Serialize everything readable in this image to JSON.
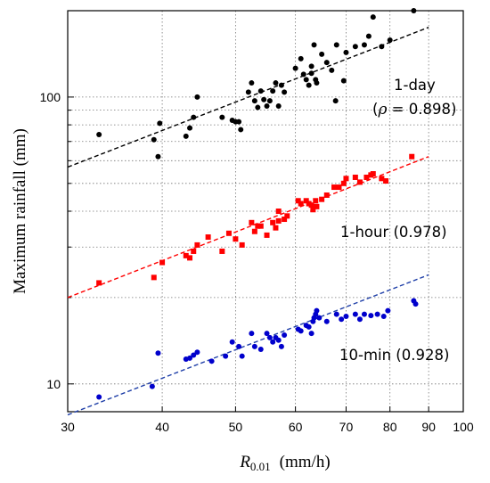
{
  "chart_data": {
    "type": "scatter",
    "x_scale": "log",
    "y_scale": "log",
    "xlim": [
      30,
      100
    ],
    "ylim": [
      8,
      200
    ],
    "grid": true,
    "grid_style": "dotted",
    "xlabel": {
      "main": "R",
      "sub": "0.01",
      "unit": "(mm/h)"
    },
    "ylabel": "Maximum rainfall  (mm)",
    "x_ticks": [
      30,
      40,
      50,
      60,
      70,
      80,
      90,
      100
    ],
    "x_tick_labels": [
      "30",
      "40",
      "50",
      "60",
      "70",
      "80",
      "90",
      "100"
    ],
    "y_major_ticks": [
      10,
      100
    ],
    "y_tick_labels": [
      "10",
      "100"
    ],
    "y_minor_ticks": [
      20,
      30,
      40,
      50,
      60,
      70,
      80,
      90,
      200
    ],
    "series": [
      {
        "name": "1-day",
        "marker": "circle",
        "color": "#000000",
        "trend_color": "#000000",
        "trend": [
          [
            30,
            57
          ],
          [
            90,
            175
          ]
        ],
        "annotation": {
          "text": "1-day",
          "rho_label": "(",
          "rho_symbol": "ρ",
          "rho_value": " = 0.898)"
        },
        "points": [
          [
            33.0,
            74
          ],
          [
            39.0,
            71
          ],
          [
            39.5,
            62
          ],
          [
            39.7,
            81
          ],
          [
            43.0,
            73
          ],
          [
            43.5,
            78
          ],
          [
            44.0,
            85
          ],
          [
            44.5,
            100
          ],
          [
            48.0,
            85
          ],
          [
            49.5,
            83
          ],
          [
            50.0,
            82
          ],
          [
            50.5,
            82
          ],
          [
            50.8,
            77
          ],
          [
            52.0,
            104
          ],
          [
            52.5,
            112
          ],
          [
            53.0,
            97
          ],
          [
            53.5,
            92
          ],
          [
            54.0,
            105
          ],
          [
            54.5,
            98
          ],
          [
            55.0,
            93
          ],
          [
            55.5,
            97
          ],
          [
            56.0,
            105
          ],
          [
            56.5,
            112
          ],
          [
            57.0,
            93
          ],
          [
            57.5,
            110
          ],
          [
            58.0,
            104
          ],
          [
            60.0,
            126
          ],
          [
            61.0,
            136
          ],
          [
            61.5,
            120
          ],
          [
            62.0,
            115
          ],
          [
            62.5,
            110
          ],
          [
            63.0,
            128
          ],
          [
            63.5,
            152
          ],
          [
            63.0,
            121
          ],
          [
            63.8,
            115
          ],
          [
            64.0,
            112
          ],
          [
            65.0,
            141
          ],
          [
            66.0,
            132
          ],
          [
            67.0,
            124
          ],
          [
            67.8,
            97
          ],
          [
            68.0,
            152
          ],
          [
            70.0,
            143
          ],
          [
            69.5,
            114
          ],
          [
            72.0,
            150
          ],
          [
            74.0,
            152
          ],
          [
            75.0,
            163
          ],
          [
            76.0,
            190
          ],
          [
            78.0,
            150
          ],
          [
            80.0,
            158
          ],
          [
            86.0,
            200
          ]
        ]
      },
      {
        "name": "1-hour",
        "marker": "square",
        "color": "#ff0000",
        "trend_color": "#ff0000",
        "trend": [
          [
            30,
            20
          ],
          [
            90,
            62
          ]
        ],
        "annotation": {
          "text": "1-hour (0.978)"
        },
        "points": [
          [
            33.0,
            22.5
          ],
          [
            39.0,
            23.5
          ],
          [
            40.0,
            26.5
          ],
          [
            43.0,
            28.0
          ],
          [
            43.5,
            27.5
          ],
          [
            44.0,
            29.0
          ],
          [
            44.5,
            30.5
          ],
          [
            46.0,
            32.5
          ],
          [
            48.0,
            29.0
          ],
          [
            49.0,
            33.5
          ],
          [
            50.0,
            32.0
          ],
          [
            51.0,
            30.5
          ],
          [
            52.5,
            36.5
          ],
          [
            53.0,
            34.0
          ],
          [
            53.5,
            35.5
          ],
          [
            54.0,
            35.5
          ],
          [
            55.0,
            33.0
          ],
          [
            56.0,
            36.5
          ],
          [
            56.5,
            35.0
          ],
          [
            57.0,
            37.0
          ],
          [
            57.0,
            40.0
          ],
          [
            58.0,
            37.5
          ],
          [
            58.5,
            38.5
          ],
          [
            60.5,
            43.5
          ],
          [
            61.0,
            42.5
          ],
          [
            62.0,
            43.5
          ],
          [
            62.5,
            42.5
          ],
          [
            63.0,
            42.0
          ],
          [
            63.3,
            40.5
          ],
          [
            63.8,
            43.5
          ],
          [
            64.0,
            41.5
          ],
          [
            65.0,
            44.0
          ],
          [
            66.0,
            45.5
          ],
          [
            67.5,
            48.5
          ],
          [
            68.5,
            48.5
          ],
          [
            69.5,
            50.0
          ],
          [
            70.0,
            52.0
          ],
          [
            72.0,
            52.5
          ],
          [
            73.0,
            50.5
          ],
          [
            74.5,
            52.5
          ],
          [
            75.5,
            53.5
          ],
          [
            76.0,
            54.0
          ],
          [
            78.0,
            52.0
          ],
          [
            79.0,
            51.0
          ],
          [
            85.5,
            62.0
          ]
        ]
      },
      {
        "name": "10-min",
        "marker": "circle",
        "color": "#0000cc",
        "trend_color": "#1f3fa8",
        "trend": [
          [
            30,
            7.8
          ],
          [
            90,
            24
          ]
        ],
        "annotation": {
          "text": "10-min (0.928)"
        },
        "points": [
          [
            33.0,
            9.0
          ],
          [
            38.8,
            9.8
          ],
          [
            39.5,
            12.8
          ],
          [
            43.0,
            12.2
          ],
          [
            43.5,
            12.3
          ],
          [
            44.0,
            12.6
          ],
          [
            44.5,
            12.9
          ],
          [
            46.5,
            12.0
          ],
          [
            48.5,
            12.5
          ],
          [
            49.5,
            14.0
          ],
          [
            50.5,
            13.5
          ],
          [
            51.0,
            12.5
          ],
          [
            52.5,
            15.0
          ],
          [
            53.0,
            13.5
          ],
          [
            54.0,
            13.2
          ],
          [
            55.0,
            15.0
          ],
          [
            55.5,
            14.5
          ],
          [
            56.0,
            14.0
          ],
          [
            56.5,
            14.5
          ],
          [
            57.0,
            14.2
          ],
          [
            57.5,
            13.5
          ],
          [
            58.0,
            14.8
          ],
          [
            60.5,
            15.5
          ],
          [
            61.0,
            15.3
          ],
          [
            62.0,
            16.0
          ],
          [
            62.5,
            15.8
          ],
          [
            63.0,
            15.0
          ],
          [
            63.3,
            16.5
          ],
          [
            63.5,
            17.0
          ],
          [
            63.8,
            17.5
          ],
          [
            64.0,
            18.0
          ],
          [
            64.5,
            17.0
          ],
          [
            66.0,
            16.5
          ],
          [
            68.0,
            17.5
          ],
          [
            69.0,
            16.8
          ],
          [
            70.0,
            17.2
          ],
          [
            72.0,
            17.5
          ],
          [
            73.0,
            16.8
          ],
          [
            74.0,
            17.5
          ],
          [
            75.5,
            17.3
          ],
          [
            77.0,
            17.5
          ],
          [
            78.5,
            17.2
          ],
          [
            79.5,
            18.0
          ],
          [
            86.0,
            19.5
          ],
          [
            86.5,
            19.0
          ]
        ]
      }
    ]
  }
}
